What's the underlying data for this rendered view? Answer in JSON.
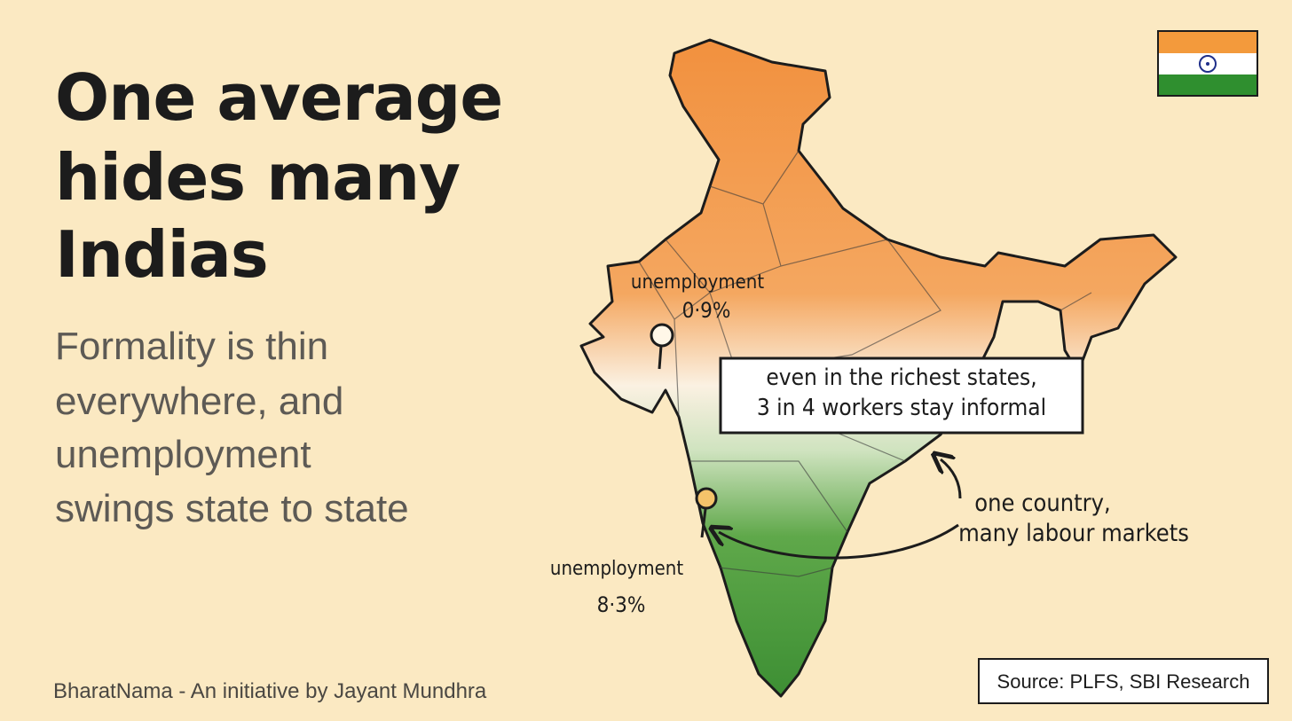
{
  "header": {
    "title": {
      "lines": [
        "One average",
        "hides many",
        "Indias"
      ]
    },
    "subtitle": {
      "lines": [
        "Formality is thin",
        "everywhere, and",
        "unemployment",
        "swings state to state"
      ]
    }
  },
  "map": {
    "annotations": [
      {
        "label": "unemployment",
        "value": "0·9%"
      },
      {
        "label": "unemployment",
        "value": "8·3%"
      }
    ],
    "callout": {
      "lines": [
        "even in the richest states,",
        "3 in 4 workers stay informal"
      ]
    },
    "arrow_note": {
      "lines": [
        "one country,",
        "many labour markets"
      ]
    }
  },
  "footer": {
    "credit": "BharatNama - An initiative by Jayant Mundhra",
    "source": "Source: PLFS, SBI Research"
  }
}
